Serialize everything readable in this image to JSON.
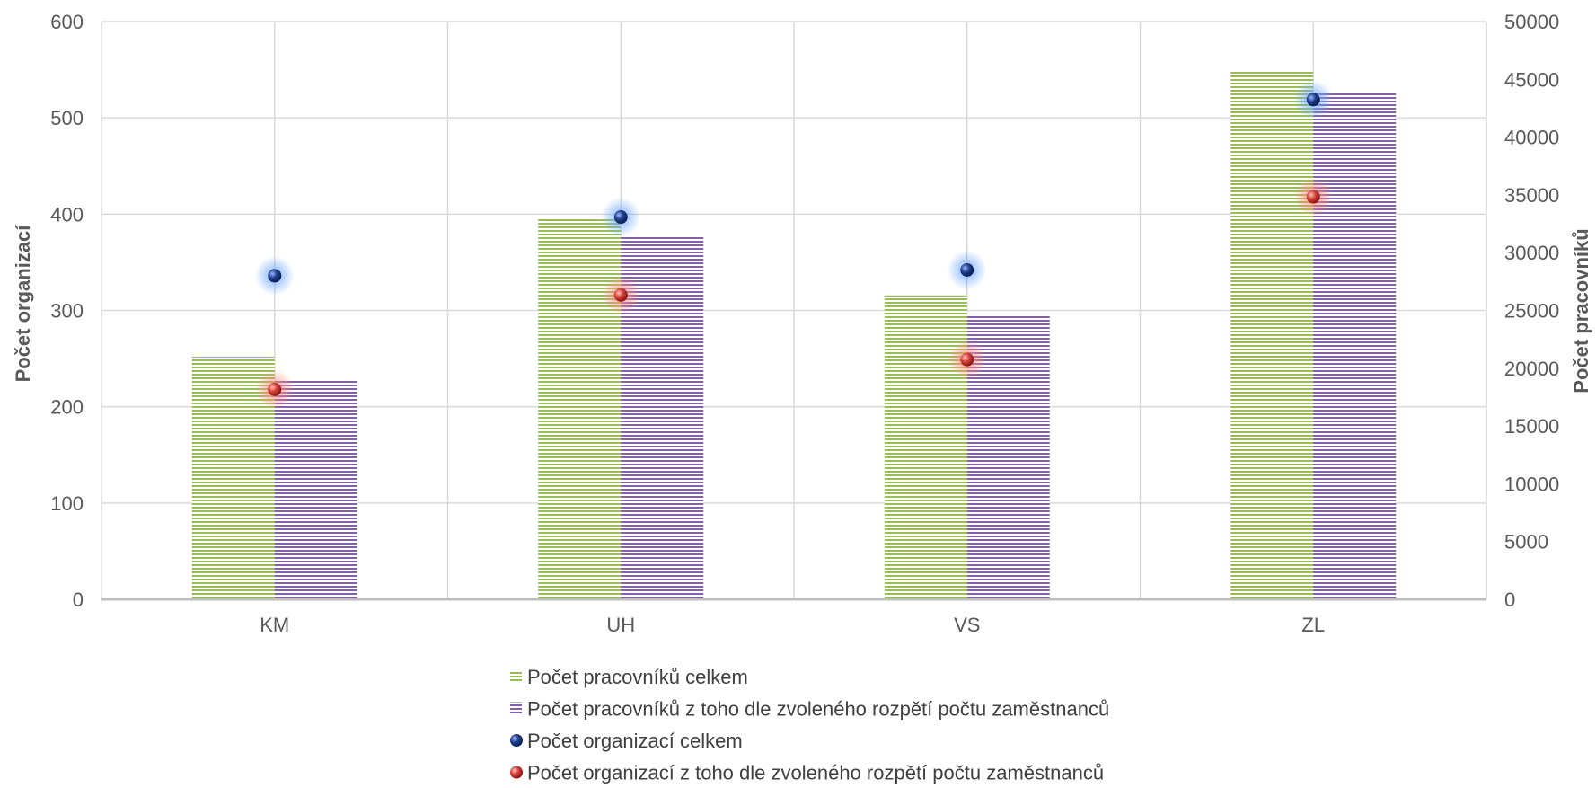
{
  "chart_data": {
    "type": "bar",
    "categories": [
      "KM",
      "UH",
      "VS",
      "ZL"
    ],
    "ylabel_left": "Počet organizací",
    "ylabel_right": "Počet pracovníků",
    "ylim_left": [
      0,
      600
    ],
    "ylim_right": [
      0,
      50000
    ],
    "yticks_left": [
      "0",
      "100",
      "200",
      "300",
      "400",
      "500",
      "600"
    ],
    "yticks_right": [
      "0",
      "5000",
      "10000",
      "15000",
      "20000",
      "25000",
      "30000",
      "35000",
      "40000",
      "45000",
      "50000"
    ],
    "grid": true,
    "legend_position": "bottom",
    "series": [
      {
        "name": "Počet pracovníků celkem",
        "kind": "bar",
        "axis": "right",
        "color": "#9bbb59",
        "values": [
          21000,
          33000,
          26300,
          45700
        ]
      },
      {
        "name": "Počet pracovníků z toho dle zvoleného rozpětí počtu zaměstnanců",
        "kind": "bar",
        "axis": "right",
        "color": "#8064a2",
        "values": [
          19000,
          31400,
          24600,
          43900
        ]
      },
      {
        "name": "Počet organizací celkem",
        "kind": "point",
        "axis": "left",
        "color": "#1f3f8f",
        "values": [
          336,
          397,
          342,
          519
        ]
      },
      {
        "name": "Počet organizací z toho dle zvoleného rozpětí počtu zaměstnanců",
        "kind": "point",
        "axis": "left",
        "color": "#d9403a",
        "values": [
          218,
          316,
          249,
          418
        ]
      }
    ]
  }
}
